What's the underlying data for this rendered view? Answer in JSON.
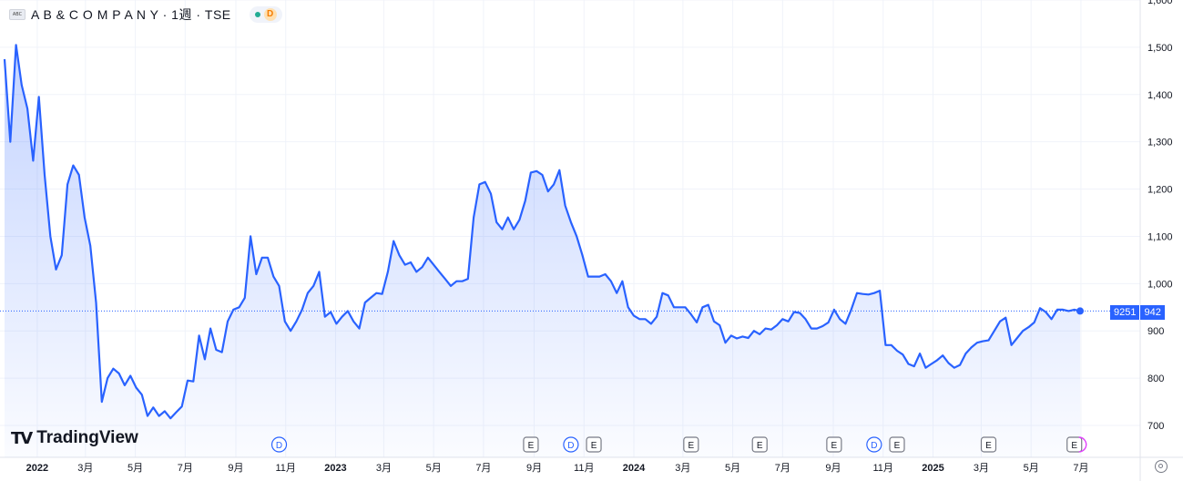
{
  "header": {
    "logo_text": "ABC",
    "title": "A B & C O M P A N Y · 1週 · TSE",
    "status_letter": "D"
  },
  "branding": {
    "logo_text": "TradingView"
  },
  "price_tag": {
    "left": "9251",
    "right": "942"
  },
  "colors": {
    "line": "#2962ff",
    "fill_top": "#2962ff",
    "grid": "#f0f3fa",
    "axis_text": "#131722",
    "dividend": "#2962ff",
    "earnings": "#131722",
    "pink": "#e040fb"
  },
  "chart_data": {
    "type": "area",
    "title": "",
    "xlabel": "",
    "ylabel": "",
    "ylim": [
      700,
      1600
    ],
    "y_ticks": [
      700,
      800,
      900,
      1000,
      1100,
      1200,
      1300,
      1400,
      1500,
      1600
    ],
    "x_tick_labels": [
      {
        "label": "2022",
        "bold": true,
        "date": "2022-01-01"
      },
      {
        "label": "3月",
        "bold": false,
        "date": "2022-03-01"
      },
      {
        "label": "5月",
        "bold": false,
        "date": "2022-05-01"
      },
      {
        "label": "7月",
        "bold": false,
        "date": "2022-07-01"
      },
      {
        "label": "9月",
        "bold": false,
        "date": "2022-09-01"
      },
      {
        "label": "11月",
        "bold": false,
        "date": "2022-11-01"
      },
      {
        "label": "2023",
        "bold": true,
        "date": "2023-01-01"
      },
      {
        "label": "3月",
        "bold": false,
        "date": "2023-03-01"
      },
      {
        "label": "5月",
        "bold": false,
        "date": "2023-05-01"
      },
      {
        "label": "7月",
        "bold": false,
        "date": "2023-07-01"
      },
      {
        "label": "9月",
        "bold": false,
        "date": "2023-09-01"
      },
      {
        "label": "11月",
        "bold": false,
        "date": "2023-11-01"
      },
      {
        "label": "2024",
        "bold": true,
        "date": "2024-01-01"
      },
      {
        "label": "3月",
        "bold": false,
        "date": "2024-03-01"
      },
      {
        "label": "5月",
        "bold": false,
        "date": "2024-05-01"
      },
      {
        "label": "7月",
        "bold": false,
        "date": "2024-07-01"
      },
      {
        "label": "9月",
        "bold": false,
        "date": "2024-09-01"
      },
      {
        "label": "11月",
        "bold": false,
        "date": "2024-11-01"
      },
      {
        "label": "2025",
        "bold": true,
        "date": "2025-01-01"
      },
      {
        "label": "3月",
        "bold": false,
        "date": "2025-03-01"
      },
      {
        "label": "5月",
        "bold": false,
        "date": "2025-05-01"
      },
      {
        "label": "7月",
        "bold": false,
        "date": "2025-07-01"
      }
    ],
    "series": [
      {
        "values": [
          [
            "2021-11-22",
            1475
          ],
          [
            "2021-11-29",
            1300
          ],
          [
            "2021-12-06",
            1505
          ],
          [
            "2021-12-13",
            1420
          ],
          [
            "2021-12-20",
            1370
          ],
          [
            "2021-12-27",
            1260
          ],
          [
            "2022-01-03",
            1395
          ],
          [
            "2022-01-10",
            1230
          ],
          [
            "2022-01-17",
            1100
          ],
          [
            "2022-01-24",
            1030
          ],
          [
            "2022-01-31",
            1060
          ],
          [
            "2022-02-07",
            1210
          ],
          [
            "2022-02-14",
            1250
          ],
          [
            "2022-02-21",
            1230
          ],
          [
            "2022-02-28",
            1140
          ],
          [
            "2022-03-07",
            1080
          ],
          [
            "2022-03-14",
            960
          ],
          [
            "2022-03-21",
            750
          ],
          [
            "2022-03-28",
            800
          ],
          [
            "2022-04-04",
            820
          ],
          [
            "2022-04-11",
            810
          ],
          [
            "2022-04-18",
            785
          ],
          [
            "2022-04-25",
            805
          ],
          [
            "2022-05-02",
            780
          ],
          [
            "2022-05-09",
            765
          ],
          [
            "2022-05-16",
            720
          ],
          [
            "2022-05-23",
            738
          ],
          [
            "2022-05-30",
            720
          ],
          [
            "2022-06-06",
            730
          ],
          [
            "2022-06-13",
            715
          ],
          [
            "2022-06-20",
            728
          ],
          [
            "2022-06-27",
            740
          ],
          [
            "2022-07-04",
            795
          ],
          [
            "2022-07-11",
            793
          ],
          [
            "2022-07-18",
            890
          ],
          [
            "2022-07-25",
            840
          ],
          [
            "2022-08-01",
            905
          ],
          [
            "2022-08-08",
            860
          ],
          [
            "2022-08-15",
            855
          ],
          [
            "2022-08-22",
            920
          ],
          [
            "2022-08-29",
            945
          ],
          [
            "2022-09-05",
            950
          ],
          [
            "2022-09-12",
            970
          ],
          [
            "2022-09-19",
            1100
          ],
          [
            "2022-09-26",
            1020
          ],
          [
            "2022-10-03",
            1055
          ],
          [
            "2022-10-10",
            1055
          ],
          [
            "2022-10-17",
            1015
          ],
          [
            "2022-10-24",
            995
          ],
          [
            "2022-10-31",
            920
          ],
          [
            "2022-11-07",
            900
          ],
          [
            "2022-11-14",
            920
          ],
          [
            "2022-11-21",
            945
          ],
          [
            "2022-11-28",
            980
          ],
          [
            "2022-12-05",
            995
          ],
          [
            "2022-12-12",
            1025
          ],
          [
            "2022-12-19",
            930
          ],
          [
            "2022-12-26",
            940
          ],
          [
            "2023-01-02",
            915
          ],
          [
            "2023-01-09",
            930
          ],
          [
            "2023-01-16",
            942
          ],
          [
            "2023-01-23",
            920
          ],
          [
            "2023-01-30",
            905
          ],
          [
            "2023-02-06",
            960
          ],
          [
            "2023-02-13",
            970
          ],
          [
            "2023-02-20",
            980
          ],
          [
            "2023-02-27",
            978
          ],
          [
            "2023-03-06",
            1025
          ],
          [
            "2023-03-13",
            1090
          ],
          [
            "2023-03-20",
            1060
          ],
          [
            "2023-03-27",
            1040
          ],
          [
            "2023-04-03",
            1045
          ],
          [
            "2023-04-10",
            1025
          ],
          [
            "2023-04-17",
            1035
          ],
          [
            "2023-04-24",
            1055
          ],
          [
            "2023-05-01",
            1040
          ],
          [
            "2023-05-08",
            1025
          ],
          [
            "2023-05-15",
            1010
          ],
          [
            "2023-05-22",
            995
          ],
          [
            "2023-05-29",
            1005
          ],
          [
            "2023-06-05",
            1005
          ],
          [
            "2023-06-12",
            1010
          ],
          [
            "2023-06-19",
            1140
          ],
          [
            "2023-06-26",
            1210
          ],
          [
            "2023-07-03",
            1215
          ],
          [
            "2023-07-10",
            1190
          ],
          [
            "2023-07-17",
            1130
          ],
          [
            "2023-07-24",
            1115
          ],
          [
            "2023-07-31",
            1140
          ],
          [
            "2023-08-07",
            1115
          ],
          [
            "2023-08-14",
            1135
          ],
          [
            "2023-08-21",
            1175
          ],
          [
            "2023-08-28",
            1235
          ],
          [
            "2023-09-04",
            1238
          ],
          [
            "2023-09-11",
            1230
          ],
          [
            "2023-09-18",
            1195
          ],
          [
            "2023-09-25",
            1210
          ],
          [
            "2023-10-02",
            1240
          ],
          [
            "2023-10-09",
            1165
          ],
          [
            "2023-10-16",
            1130
          ],
          [
            "2023-10-23",
            1100
          ],
          [
            "2023-10-30",
            1060
          ],
          [
            "2023-11-06",
            1015
          ],
          [
            "2023-11-13",
            1015
          ],
          [
            "2023-11-20",
            1015
          ],
          [
            "2023-11-27",
            1020
          ],
          [
            "2023-12-04",
            1005
          ],
          [
            "2023-12-11",
            980
          ],
          [
            "2023-12-18",
            1005
          ],
          [
            "2023-12-25",
            950
          ],
          [
            "2024-01-01",
            932
          ],
          [
            "2024-01-08",
            925
          ],
          [
            "2024-01-15",
            925
          ],
          [
            "2024-01-22",
            915
          ],
          [
            "2024-01-29",
            930
          ],
          [
            "2024-02-05",
            980
          ],
          [
            "2024-02-12",
            975
          ],
          [
            "2024-02-19",
            950
          ],
          [
            "2024-02-26",
            950
          ],
          [
            "2024-03-04",
            950
          ],
          [
            "2024-03-11",
            935
          ],
          [
            "2024-03-18",
            918
          ],
          [
            "2024-03-25",
            950
          ],
          [
            "2024-04-01",
            955
          ],
          [
            "2024-04-08",
            920
          ],
          [
            "2024-04-15",
            912
          ],
          [
            "2024-04-22",
            875
          ],
          [
            "2024-04-29",
            890
          ],
          [
            "2024-05-06",
            884
          ],
          [
            "2024-05-13",
            888
          ],
          [
            "2024-05-20",
            885
          ],
          [
            "2024-05-27",
            900
          ],
          [
            "2024-06-03",
            893
          ],
          [
            "2024-06-10",
            905
          ],
          [
            "2024-06-17",
            903
          ],
          [
            "2024-06-24",
            912
          ],
          [
            "2024-07-01",
            925
          ],
          [
            "2024-07-08",
            920
          ],
          [
            "2024-07-15",
            940
          ],
          [
            "2024-07-22",
            938
          ],
          [
            "2024-07-29",
            925
          ],
          [
            "2024-08-05",
            905
          ],
          [
            "2024-08-12",
            905
          ],
          [
            "2024-08-19",
            910
          ],
          [
            "2024-08-26",
            918
          ],
          [
            "2024-09-02",
            945
          ],
          [
            "2024-09-09",
            925
          ],
          [
            "2024-09-16",
            915
          ],
          [
            "2024-09-23",
            945
          ],
          [
            "2024-09-30",
            980
          ],
          [
            "2024-10-07",
            978
          ],
          [
            "2024-10-14",
            977
          ],
          [
            "2024-10-21",
            980
          ],
          [
            "2024-10-28",
            985
          ],
          [
            "2024-11-04",
            870
          ],
          [
            "2024-11-11",
            870
          ],
          [
            "2024-11-18",
            858
          ],
          [
            "2024-11-25",
            850
          ],
          [
            "2024-12-02",
            830
          ],
          [
            "2024-12-09",
            825
          ],
          [
            "2024-12-16",
            852
          ],
          [
            "2024-12-23",
            822
          ],
          [
            "2024-12-30",
            830
          ],
          [
            "2025-01-06",
            838
          ],
          [
            "2025-01-13",
            848
          ],
          [
            "2025-01-20",
            832
          ],
          [
            "2025-01-27",
            822
          ],
          [
            "2025-02-03",
            828
          ],
          [
            "2025-02-10",
            852
          ],
          [
            "2025-02-17",
            865
          ],
          [
            "2025-02-24",
            875
          ],
          [
            "2025-03-03",
            878
          ],
          [
            "2025-03-10",
            880
          ],
          [
            "2025-03-17",
            900
          ],
          [
            "2025-03-24",
            920
          ],
          [
            "2025-03-31",
            928
          ],
          [
            "2025-04-07",
            870
          ],
          [
            "2025-04-14",
            885
          ],
          [
            "2025-04-21",
            900
          ],
          [
            "2025-04-28",
            908
          ],
          [
            "2025-05-05",
            918
          ],
          [
            "2025-05-12",
            948
          ],
          [
            "2025-05-19",
            940
          ],
          [
            "2025-05-26",
            925
          ],
          [
            "2025-06-02",
            945
          ],
          [
            "2025-06-09",
            945
          ],
          [
            "2025-06-16",
            942
          ],
          [
            "2025-06-23",
            945
          ],
          [
            "2025-06-30",
            942
          ]
        ]
      }
    ],
    "last_value": 942,
    "event_markers": [
      {
        "type": "D",
        "date": "2022-10-24"
      },
      {
        "type": "E",
        "date": "2023-08-28"
      },
      {
        "type": "D",
        "date": "2023-10-16"
      },
      {
        "type": "E",
        "date": "2023-11-13"
      },
      {
        "type": "E",
        "date": "2024-03-11"
      },
      {
        "type": "E",
        "date": "2024-06-03"
      },
      {
        "type": "E",
        "date": "2024-09-02"
      },
      {
        "type": "D",
        "date": "2024-10-21"
      },
      {
        "type": "E",
        "date": "2024-11-18"
      },
      {
        "type": "E",
        "date": "2025-03-10"
      },
      {
        "type": "E",
        "date": "2025-06-23"
      }
    ],
    "grid": true,
    "legend": "none"
  }
}
